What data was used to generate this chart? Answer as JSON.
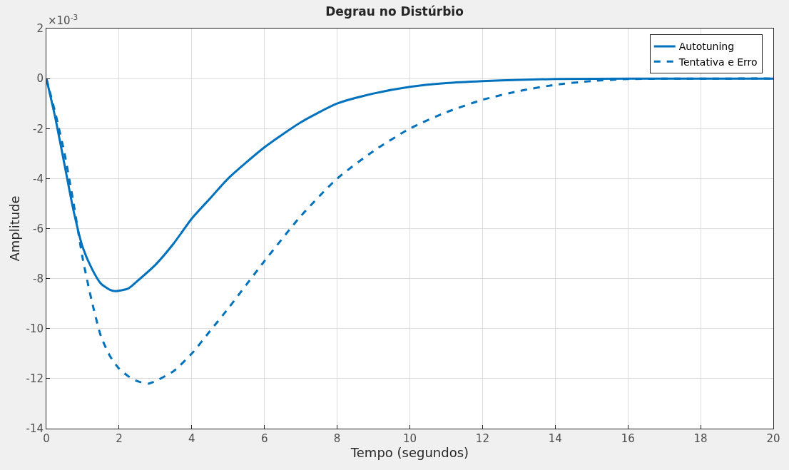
{
  "chart_data": {
    "type": "line",
    "title": "Degrau no Distúrbio",
    "xlabel": "Tempo (segundos)",
    "ylabel": "Amplitude",
    "annotations": [
      "×10$^{-3}$"
    ],
    "xlim": [
      0,
      20
    ],
    "xticks": [
      0,
      2,
      4,
      6,
      8,
      10,
      12,
      14,
      16,
      18,
      20
    ],
    "ylim": [
      -14,
      2
    ],
    "yticks": [
      -14,
      -12,
      -10,
      -8,
      -6,
      -4,
      -2,
      0,
      2
    ],
    "grid": true,
    "legend": "top right",
    "series": [
      {
        "name": "Autotuning",
        "color": "#0072bd",
        "line_style": "solid",
        "x": [
          0,
          0.25,
          0.5,
          0.75,
          1,
          1.25,
          1.5,
          1.75,
          1.9,
          2.25,
          2.5,
          3,
          3.5,
          4,
          4.5,
          5,
          6,
          7,
          8,
          9,
          10,
          11,
          12,
          13,
          14,
          16,
          20
        ],
        "values": [
          0,
          -1.6,
          -3.45,
          -5.3,
          -6.75,
          -7.6,
          -8.2,
          -8.45,
          -8.5,
          -8.4,
          -8.1,
          -7.45,
          -6.6,
          -5.6,
          -4.8,
          -4.0,
          -2.75,
          -1.75,
          -1.0,
          -0.6,
          -0.33,
          -0.18,
          -0.1,
          -0.05,
          -0.02,
          0,
          0
        ]
      },
      {
        "name": "Tentativa e Erro",
        "color": "#0072bd",
        "line_style": "dashed",
        "x": [
          0,
          0.25,
          0.5,
          0.75,
          1,
          1.25,
          1.5,
          1.75,
          2,
          2.25,
          2.5,
          2.8,
          3,
          3.5,
          4,
          4.5,
          5,
          6,
          7,
          8,
          9,
          10,
          11,
          12,
          13,
          14,
          15,
          16,
          20
        ],
        "values": [
          0,
          -1.4,
          -3.0,
          -5.0,
          -7.2,
          -8.9,
          -10.3,
          -11.1,
          -11.6,
          -11.9,
          -12.1,
          -12.2,
          -12.1,
          -11.7,
          -11.0,
          -10.1,
          -9.2,
          -7.3,
          -5.5,
          -4.0,
          -2.9,
          -2.0,
          -1.35,
          -0.85,
          -0.5,
          -0.25,
          -0.1,
          -0.02,
          0
        ]
      }
    ]
  }
}
